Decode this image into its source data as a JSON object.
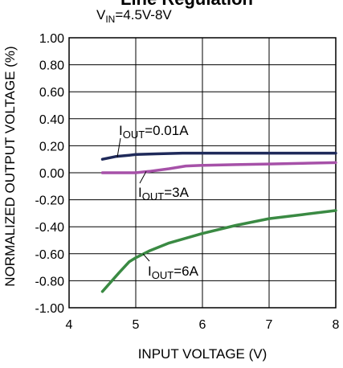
{
  "chart_data": {
    "type": "line",
    "title": "Line Regulation",
    "subtitle": "V_IN=4.5V-8V",
    "xlabel": "INPUT VOLTAGE (V)",
    "ylabel": "NORMALIZED OUTPUT VOLTAGE (%)",
    "xlim": [
      4,
      8
    ],
    "ylim": [
      -1.0,
      1.0
    ],
    "x_ticks": [
      "4",
      "5",
      "6",
      "7",
      "8"
    ],
    "y_ticks": [
      "1.00",
      "0.80",
      "0.60",
      "0.40",
      "0.20",
      "0.00",
      "-0.20",
      "-0.40",
      "-0.60",
      "-0.80",
      "-1.00"
    ],
    "grid": true,
    "series": [
      {
        "name": "I_OUT=0.01A",
        "label_main": "I",
        "label_sub": "OUT",
        "label_rest": "=0.01A",
        "color": "#1f2a5a",
        "x": [
          4.5,
          4.7,
          4.9,
          5.0,
          5.3,
          5.7,
          6.0,
          6.5,
          7.0,
          7.5,
          8.0
        ],
        "y": [
          0.1,
          0.12,
          0.13,
          0.135,
          0.14,
          0.145,
          0.145,
          0.145,
          0.145,
          0.145,
          0.145
        ]
      },
      {
        "name": "I_OUT=3A",
        "label_main": "I",
        "label_sub": "OUT",
        "label_rest": "=3A",
        "color": "#a651a8",
        "x": [
          4.5,
          5.0,
          5.2,
          5.5,
          5.75,
          6.0,
          6.5,
          7.0,
          7.5,
          8.0
        ],
        "y": [
          0.0,
          0.0,
          0.01,
          0.03,
          0.05,
          0.055,
          0.06,
          0.065,
          0.07,
          0.075
        ]
      },
      {
        "name": "I_OUT=6A",
        "label_main": "I",
        "label_sub": "OUT",
        "label_rest": "=6A",
        "color": "#3a8a43",
        "x": [
          4.5,
          4.75,
          4.9,
          5.0,
          5.2,
          5.5,
          6.0,
          6.5,
          7.0,
          7.5,
          8.0
        ],
        "y": [
          -0.88,
          -0.74,
          -0.66,
          -0.63,
          -0.58,
          -0.52,
          -0.45,
          -0.39,
          -0.34,
          -0.31,
          -0.28
        ]
      }
    ]
  }
}
